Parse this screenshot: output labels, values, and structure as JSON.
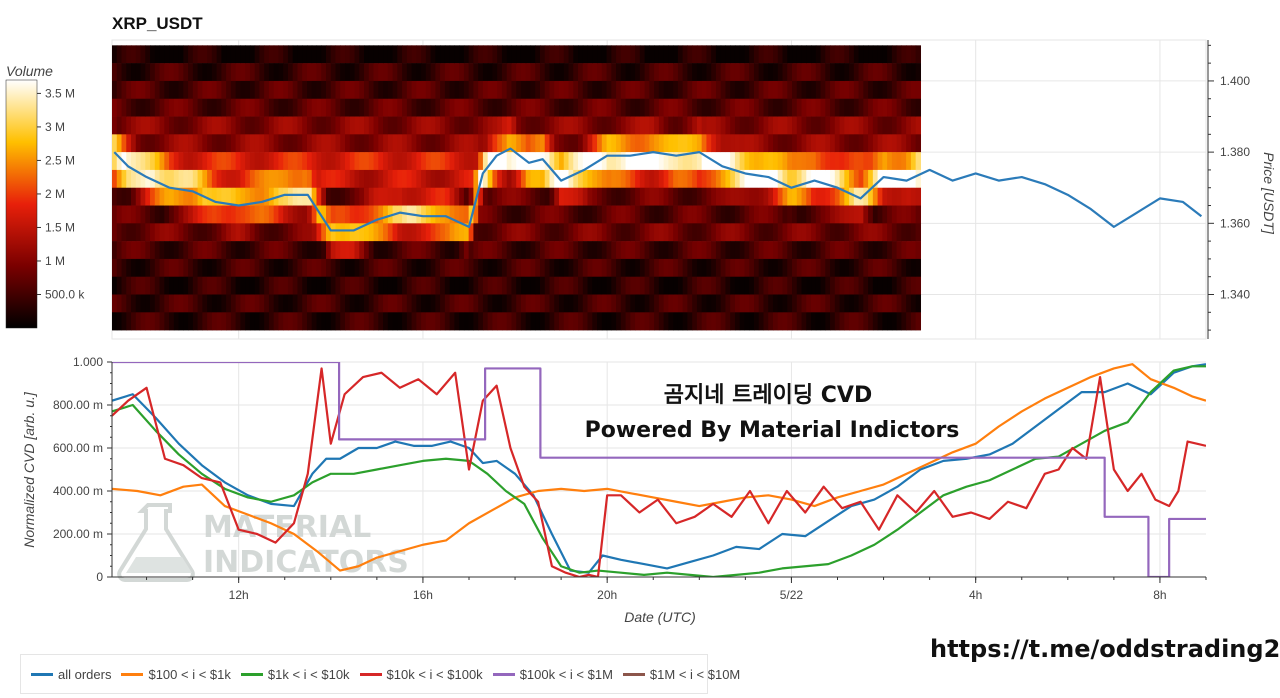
{
  "top_chart": {
    "title": "XRP_USDT",
    "colorbar": {
      "title": "Volume",
      "ticks": [
        "3.5 M",
        "3 M",
        "2.5 M",
        "2 M",
        "1.5 M",
        "1 M",
        "500.0 k"
      ],
      "tick_values": [
        3.5,
        3.0,
        2.5,
        2.0,
        1.5,
        1.0,
        0.5
      ],
      "range": [
        0,
        3.7
      ]
    },
    "y_axis_title": "Price [USDT]",
    "y_ticks": [
      "1.400",
      "1.380",
      "1.360",
      "1.340"
    ],
    "y_tick_values": [
      1.4,
      1.38,
      1.36,
      1.34
    ],
    "ylim": [
      1.3275,
      1.4115
    ]
  },
  "bottom_chart": {
    "y_axis_title": "Normalized CVD [arb. u.]",
    "y_ticks": [
      "1.000",
      "800.00 m",
      "600.00 m",
      "400.00 m",
      "200.00 m",
      "0"
    ],
    "y_tick_values": [
      1.0,
      0.8,
      0.6,
      0.4,
      0.2,
      0.0
    ],
    "ylim": [
      0,
      1
    ],
    "x_axis_title": "Date (UTC)",
    "x_ticks": [
      "12h",
      "16h",
      "20h",
      "5/22",
      "4h",
      "8h"
    ],
    "x_tick_values": [
      12,
      16,
      20,
      24,
      28,
      32
    ],
    "xlim": [
      9.25,
      33.0
    ]
  },
  "overlay": {
    "line1": "곰지네 트레이딩 CVD",
    "line2": "Powered By Material Indictors"
  },
  "watermark": {
    "line1": "MATERIAL",
    "line2": "INDICATORS"
  },
  "footer_url": "https://t.me/oddstrading2",
  "colors": {
    "all_orders": "#1f77b4",
    "s100_1k": "#ff7f0e",
    "s1k_10k": "#2ca02c",
    "s10k_100k": "#d62728",
    "s100k_1m": "#9467bd",
    "s1m_10m": "#8c564b",
    "price": "#2b7bb9"
  },
  "chart_data": [
    {
      "type": "heatmap",
      "title": "XRP_USDT",
      "ylabel": "Price [USDT]",
      "x_range": [
        9.25,
        26.8
      ],
      "y_bands": [
        1.4075,
        1.4025,
        1.3975,
        1.3925,
        1.3875,
        1.3825,
        1.3775,
        1.3725,
        1.3675,
        1.3625,
        1.3575,
        1.3525,
        1.3475,
        1.3425,
        1.3375,
        1.3325
      ],
      "band_levels": [
        0.3,
        0.8,
        1.0,
        1.2,
        1.8,
        1.9,
        3.2,
        2.8,
        1.4,
        1.2,
        1.5,
        1.0,
        0.8,
        0.6,
        0.8,
        0.7
      ],
      "price_series": {
        "name": "Price",
        "x": [
          9.3,
          9.6,
          10.0,
          10.5,
          11.0,
          11.5,
          12.0,
          12.5,
          13.0,
          13.5,
          14.0,
          14.5,
          15.0,
          15.5,
          16.0,
          16.5,
          17.0,
          17.3,
          17.6,
          17.9,
          18.3,
          18.6,
          19.0,
          19.5,
          20.0,
          20.5,
          21.0,
          21.5,
          22.0,
          22.5,
          23.0,
          23.5,
          24.0,
          24.5,
          25.0,
          25.5,
          26.0,
          26.5,
          27.0,
          27.5,
          28.0,
          28.5,
          29.0,
          29.5,
          30.0,
          30.5,
          31.0,
          31.5,
          32.0,
          32.5,
          32.9
        ],
        "y": [
          1.38,
          1.376,
          1.373,
          1.37,
          1.369,
          1.366,
          1.365,
          1.366,
          1.368,
          1.368,
          1.358,
          1.358,
          1.361,
          1.363,
          1.362,
          1.362,
          1.359,
          1.374,
          1.379,
          1.381,
          1.377,
          1.378,
          1.372,
          1.375,
          1.379,
          1.379,
          1.38,
          1.379,
          1.38,
          1.376,
          1.374,
          1.373,
          1.37,
          1.372,
          1.37,
          1.367,
          1.373,
          1.372,
          1.375,
          1.372,
          1.374,
          1.372,
          1.373,
          1.371,
          1.368,
          1.364,
          1.359,
          1.363,
          1.367,
          1.366,
          1.362
        ]
      }
    },
    {
      "type": "line",
      "xlabel": "Date (UTC)",
      "ylabel": "Normalized CVD [arb. u.]",
      "xlim": [
        9.25,
        33.0
      ],
      "ylim": [
        0,
        1
      ],
      "legend": "bottom",
      "series": [
        {
          "name": "all orders",
          "key": "all_orders",
          "x": [
            9.25,
            9.7,
            10.2,
            10.7,
            11.2,
            11.7,
            12.2,
            12.7,
            13.2,
            13.6,
            13.9,
            14.2,
            14.6,
            15.0,
            15.4,
            15.8,
            16.2,
            16.6,
            17.0,
            17.3,
            17.6,
            18.0,
            18.4,
            18.8,
            19.2,
            19.6,
            19.9,
            20.3,
            20.8,
            21.3,
            21.8,
            22.3,
            22.8,
            23.3,
            23.8,
            24.3,
            24.8,
            25.3,
            25.8,
            26.3,
            26.8,
            27.3,
            27.8,
            28.3,
            28.8,
            29.3,
            29.8,
            30.3,
            30.8,
            31.3,
            31.8,
            32.3,
            32.7,
            33.0
          ],
          "y": [
            0.82,
            0.85,
            0.74,
            0.62,
            0.52,
            0.44,
            0.38,
            0.34,
            0.33,
            0.48,
            0.55,
            0.55,
            0.6,
            0.6,
            0.63,
            0.61,
            0.61,
            0.63,
            0.6,
            0.53,
            0.54,
            0.48,
            0.38,
            0.2,
            0.03,
            0.02,
            0.1,
            0.08,
            0.06,
            0.04,
            0.07,
            0.1,
            0.14,
            0.13,
            0.2,
            0.19,
            0.26,
            0.33,
            0.36,
            0.42,
            0.5,
            0.54,
            0.55,
            0.57,
            0.62,
            0.7,
            0.78,
            0.86,
            0.86,
            0.9,
            0.85,
            0.95,
            0.98,
            0.99
          ]
        },
        {
          "name": "$100 < i < $1k",
          "key": "s100_1k",
          "x": [
            9.25,
            9.8,
            10.3,
            10.8,
            11.2,
            11.7,
            12.2,
            12.7,
            13.2,
            13.7,
            14.2,
            14.6,
            15.0,
            15.5,
            16.0,
            16.5,
            17.0,
            17.5,
            18.0,
            18.5,
            19.0,
            19.5,
            20.0,
            20.5,
            21.0,
            21.5,
            22.0,
            22.5,
            23.0,
            23.5,
            24.0,
            24.5,
            25.0,
            25.5,
            26.0,
            26.5,
            27.0,
            27.5,
            28.0,
            28.5,
            29.0,
            29.5,
            30.0,
            30.5,
            31.0,
            31.4,
            31.8,
            32.3,
            32.7,
            33.0
          ],
          "y": [
            0.41,
            0.4,
            0.38,
            0.42,
            0.43,
            0.33,
            0.29,
            0.25,
            0.2,
            0.12,
            0.03,
            0.05,
            0.09,
            0.12,
            0.15,
            0.17,
            0.25,
            0.31,
            0.37,
            0.4,
            0.41,
            0.4,
            0.41,
            0.39,
            0.37,
            0.35,
            0.33,
            0.35,
            0.37,
            0.38,
            0.36,
            0.33,
            0.37,
            0.4,
            0.43,
            0.48,
            0.53,
            0.58,
            0.62,
            0.7,
            0.77,
            0.83,
            0.88,
            0.93,
            0.97,
            0.99,
            0.92,
            0.88,
            0.84,
            0.82
          ]
        },
        {
          "name": "$1k < i < $10k",
          "key": "s1k_10k",
          "x": [
            9.25,
            9.7,
            10.2,
            10.7,
            11.2,
            11.7,
            12.2,
            12.7,
            13.2,
            13.6,
            14.0,
            14.5,
            15.0,
            15.5,
            16.0,
            16.5,
            17.0,
            17.4,
            17.8,
            18.2,
            18.6,
            19.0,
            19.4,
            19.8,
            20.3,
            20.8,
            21.3,
            21.8,
            22.3,
            22.8,
            23.3,
            23.8,
            24.3,
            24.8,
            25.3,
            25.8,
            26.3,
            26.8,
            27.3,
            27.8,
            28.3,
            28.8,
            29.3,
            29.8,
            30.3,
            30.8,
            31.3,
            31.8,
            32.3,
            32.7,
            33.0
          ],
          "y": [
            0.77,
            0.8,
            0.68,
            0.57,
            0.48,
            0.41,
            0.37,
            0.35,
            0.38,
            0.44,
            0.48,
            0.48,
            0.5,
            0.52,
            0.54,
            0.55,
            0.54,
            0.48,
            0.4,
            0.34,
            0.18,
            0.05,
            0.02,
            0.03,
            0.02,
            0.01,
            0.02,
            0.01,
            0.0,
            0.01,
            0.02,
            0.04,
            0.05,
            0.06,
            0.1,
            0.15,
            0.22,
            0.3,
            0.38,
            0.42,
            0.45,
            0.5,
            0.55,
            0.56,
            0.62,
            0.68,
            0.72,
            0.86,
            0.96,
            0.98,
            0.98
          ]
        },
        {
          "name": "$10k < i < $100k",
          "key": "s10k_100k",
          "x": [
            9.25,
            9.6,
            10.0,
            10.4,
            10.8,
            11.2,
            11.6,
            12.0,
            12.4,
            12.8,
            13.2,
            13.5,
            13.8,
            14.0,
            14.3,
            14.7,
            15.1,
            15.5,
            15.9,
            16.3,
            16.7,
            17.0,
            17.3,
            17.6,
            17.9,
            18.2,
            18.5,
            18.8,
            19.1,
            19.4,
            19.6,
            19.8,
            20.0,
            20.3,
            20.7,
            21.1,
            21.5,
            21.9,
            22.3,
            22.7,
            23.1,
            23.5,
            23.9,
            24.3,
            24.7,
            25.1,
            25.5,
            25.9,
            26.3,
            26.7,
            27.1,
            27.5,
            27.9,
            28.3,
            28.7,
            29.1,
            29.5,
            29.8,
            30.1,
            30.4,
            30.7,
            31.0,
            31.3,
            31.6,
            31.9,
            32.2,
            32.4,
            32.6,
            32.8,
            33.0
          ],
          "y": [
            0.75,
            0.82,
            0.88,
            0.55,
            0.52,
            0.46,
            0.44,
            0.22,
            0.2,
            0.16,
            0.25,
            0.48,
            0.97,
            0.62,
            0.85,
            0.93,
            0.95,
            0.88,
            0.92,
            0.85,
            0.95,
            0.5,
            0.82,
            0.89,
            0.6,
            0.42,
            0.35,
            0.05,
            0.02,
            0.0,
            0.01,
            0.0,
            0.38,
            0.38,
            0.3,
            0.36,
            0.25,
            0.28,
            0.34,
            0.28,
            0.4,
            0.25,
            0.4,
            0.3,
            0.42,
            0.32,
            0.35,
            0.22,
            0.38,
            0.3,
            0.4,
            0.28,
            0.3,
            0.27,
            0.35,
            0.32,
            0.48,
            0.5,
            0.6,
            0.55,
            0.93,
            0.5,
            0.4,
            0.48,
            0.36,
            0.33,
            0.4,
            0.63,
            0.62,
            0.61
          ]
        },
        {
          "name": "$100k < i < $1M",
          "key": "s100k_1m",
          "x": [
            9.25,
            14.18,
            14.18,
            17.35,
            17.35,
            18.55,
            18.55,
            30.8,
            30.8,
            31.75,
            31.75,
            32.2,
            32.2,
            33.0
          ],
          "y": [
            1.0,
            1.0,
            0.64,
            0.64,
            0.97,
            0.97,
            0.555,
            0.555,
            0.28,
            0.28,
            0.0,
            0.0,
            0.27,
            0.27
          ]
        },
        {
          "name": "$1M < i < $10M",
          "key": "s1m_10m",
          "x": [],
          "y": []
        }
      ]
    }
  ]
}
